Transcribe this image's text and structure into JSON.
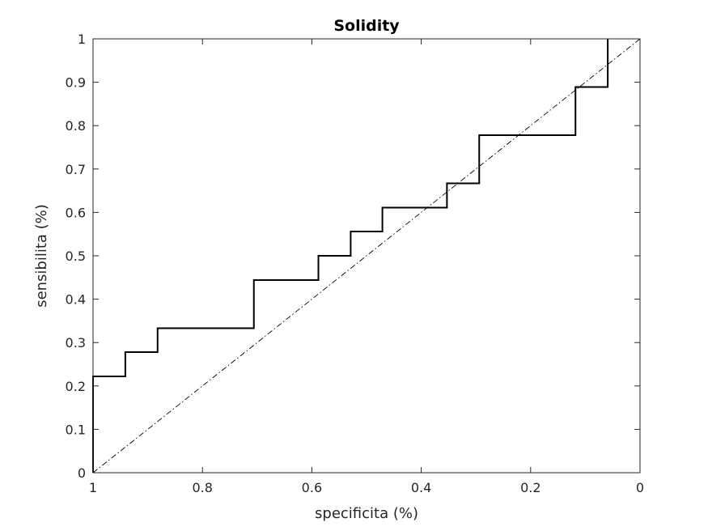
{
  "chart_data": {
    "type": "line",
    "title": "Solidity",
    "xlabel": "specificita (%)",
    "ylabel": "sensibilita (%)",
    "xlim": [
      0,
      1
    ],
    "ylim": [
      0,
      1
    ],
    "x_reversed": true,
    "grid": false,
    "legend": "none",
    "xticks": [
      1,
      0.8,
      0.6,
      0.4,
      0.2,
      0
    ],
    "xtick_labels": [
      "1",
      "0.8",
      "0.6",
      "0.4",
      "0.2",
      "0"
    ],
    "yticks": [
      0,
      0.1,
      0.2,
      0.3,
      0.4,
      0.5,
      0.6,
      0.7,
      0.8,
      0.9,
      1
    ],
    "ytick_labels": [
      "0",
      "0.1",
      "0.2",
      "0.3",
      "0.4",
      "0.5",
      "0.6",
      "0.7",
      "0.8",
      "0.9",
      "1"
    ],
    "series": [
      {
        "style": "step",
        "color": "#000000",
        "x": [
          1,
          1,
          0.941,
          0.941,
          0.882,
          0.882,
          0.706,
          0.706,
          0.588,
          0.588,
          0.529,
          0.529,
          0.471,
          0.471,
          0.353,
          0.353,
          0.294,
          0.294,
          0.118,
          0.118,
          0.059,
          0.059
        ],
        "y": [
          0,
          0.222,
          0.222,
          0.278,
          0.278,
          0.333,
          0.333,
          0.444,
          0.444,
          0.5,
          0.5,
          0.556,
          0.556,
          0.611,
          0.611,
          0.667,
          0.667,
          0.778,
          0.778,
          0.889,
          0.889,
          1
        ]
      },
      {
        "style": "dash-dot",
        "color": "#000000",
        "x": [
          1,
          0
        ],
        "y": [
          0,
          1
        ]
      }
    ]
  }
}
